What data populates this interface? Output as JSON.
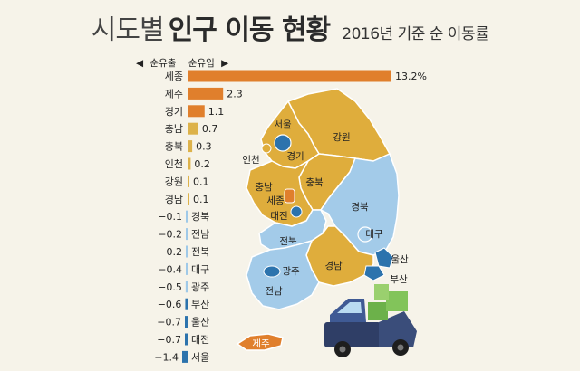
{
  "title": {
    "light": "시도별",
    "bold": "인구 이동 현황",
    "sub": "2016년 기준 순 이동률"
  },
  "legend": {
    "left_arrow": "◀",
    "outflow": "순유출",
    "inflow": "순유입",
    "right_arrow": "▶"
  },
  "colors": {
    "positive_dark": "#e07f2c",
    "positive_light": "#ddb24a",
    "negative_light": "#9fc9e8",
    "negative_dark": "#2c73ad",
    "map_positive": "#dfad3c",
    "map_negative": "#a3cbe9",
    "map_urban": "#2c73ad",
    "background": "#f6f3e9"
  },
  "chart_data": {
    "type": "bar",
    "title": "2016년 기준 순 이동률",
    "unit": "%",
    "categories": [
      "세종",
      "제주",
      "경기",
      "충남",
      "충북",
      "인천",
      "강원",
      "경남",
      "경북",
      "전남",
      "전북",
      "대구",
      "광주",
      "부산",
      "울산",
      "대전",
      "서울"
    ],
    "values": [
      13.2,
      2.3,
      1.1,
      0.7,
      0.3,
      0.2,
      0.1,
      0.1,
      -0.1,
      -0.2,
      -0.2,
      -0.4,
      -0.5,
      -0.6,
      -0.7,
      -0.7,
      -1.4
    ],
    "value_labels": [
      "13.2%",
      "2.3",
      "1.1",
      "0.7",
      "0.3",
      "0.2",
      "0.1",
      "0.1",
      "−0.1",
      "−0.2",
      "−0.2",
      "−0.4",
      "−0.5",
      "−0.6",
      "−0.7",
      "−0.7",
      "−1.4"
    ]
  },
  "map": {
    "region_labels": [
      "서울",
      "인천",
      "경기",
      "강원",
      "충북",
      "충남",
      "세종",
      "대전",
      "경북",
      "대구",
      "전북",
      "광주",
      "전남",
      "경남",
      "울산",
      "부산",
      "제주"
    ]
  }
}
